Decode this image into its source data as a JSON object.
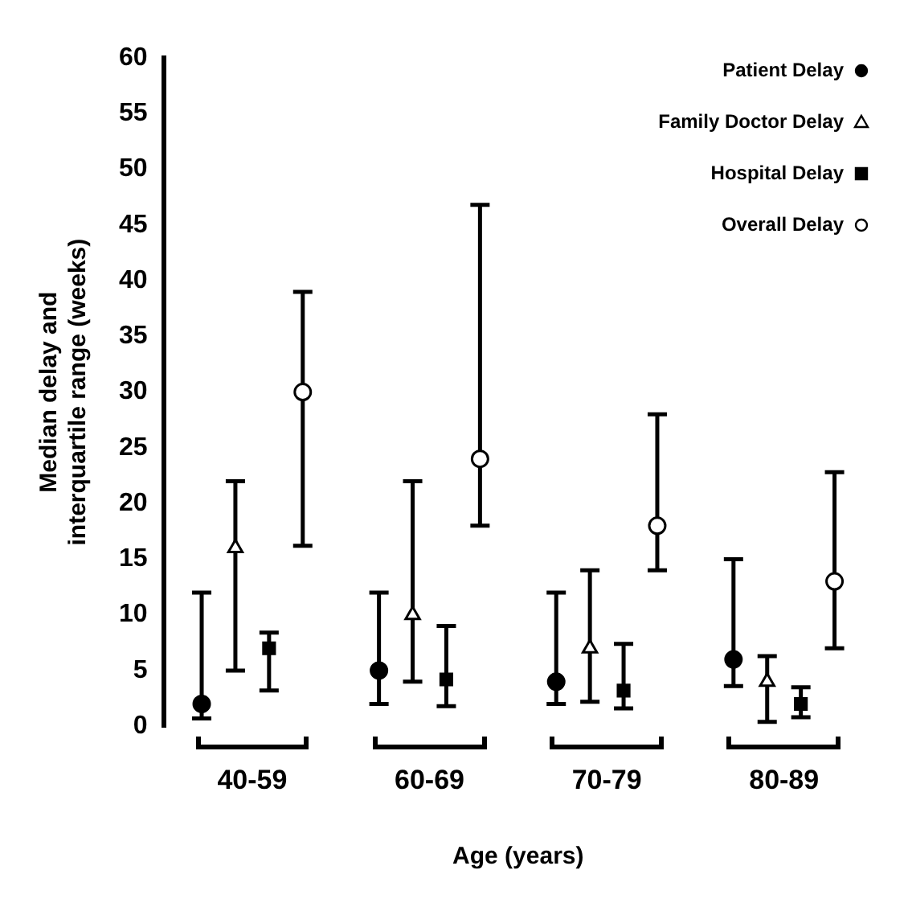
{
  "chart_data": {
    "type": "scatter",
    "xlabel": "Age (years)",
    "ylabel": "Median delay and interquartile range (weeks)",
    "categories": [
      "40-59",
      "60-69",
      "70-79",
      "80-89"
    ],
    "ylim": [
      0,
      60
    ],
    "yticks": [
      0,
      5,
      10,
      15,
      20,
      25,
      30,
      35,
      40,
      45,
      50,
      55,
      60
    ],
    "grid": false,
    "legend": "top right",
    "series": [
      {
        "name": "Patient Delay",
        "color": "#000000",
        "marker": "circle",
        "values": [
          2,
          5,
          4,
          6
        ],
        "errors": [
          [
            0.7,
            12
          ],
          [
            2,
            12
          ],
          [
            2,
            12
          ],
          [
            3.6,
            15
          ]
        ]
      },
      {
        "name": "Family Doctor Delay",
        "color": "#ffffff",
        "marker": "triangle",
        "values": [
          16,
          10,
          7,
          4
        ],
        "errors": [
          [
            5,
            22
          ],
          [
            4,
            22
          ],
          [
            2.2,
            14
          ],
          [
            0.4,
            6.3
          ]
        ]
      },
      {
        "name": "Hospital Delay",
        "color": "#000000",
        "marker": "square",
        "values": [
          7,
          4.2,
          3.2,
          2
        ],
        "errors": [
          [
            3.2,
            8.4
          ],
          [
            1.8,
            9
          ],
          [
            1.6,
            7.4
          ],
          [
            0.8,
            3.5
          ]
        ]
      },
      {
        "name": "Overall Delay",
        "color": "#ffffff",
        "marker": "circle",
        "values": [
          30,
          24,
          18,
          13
        ],
        "errors": [
          [
            16.2,
            39
          ],
          [
            18,
            46.8
          ],
          [
            14,
            28
          ],
          [
            7,
            22.8
          ]
        ]
      }
    ]
  }
}
